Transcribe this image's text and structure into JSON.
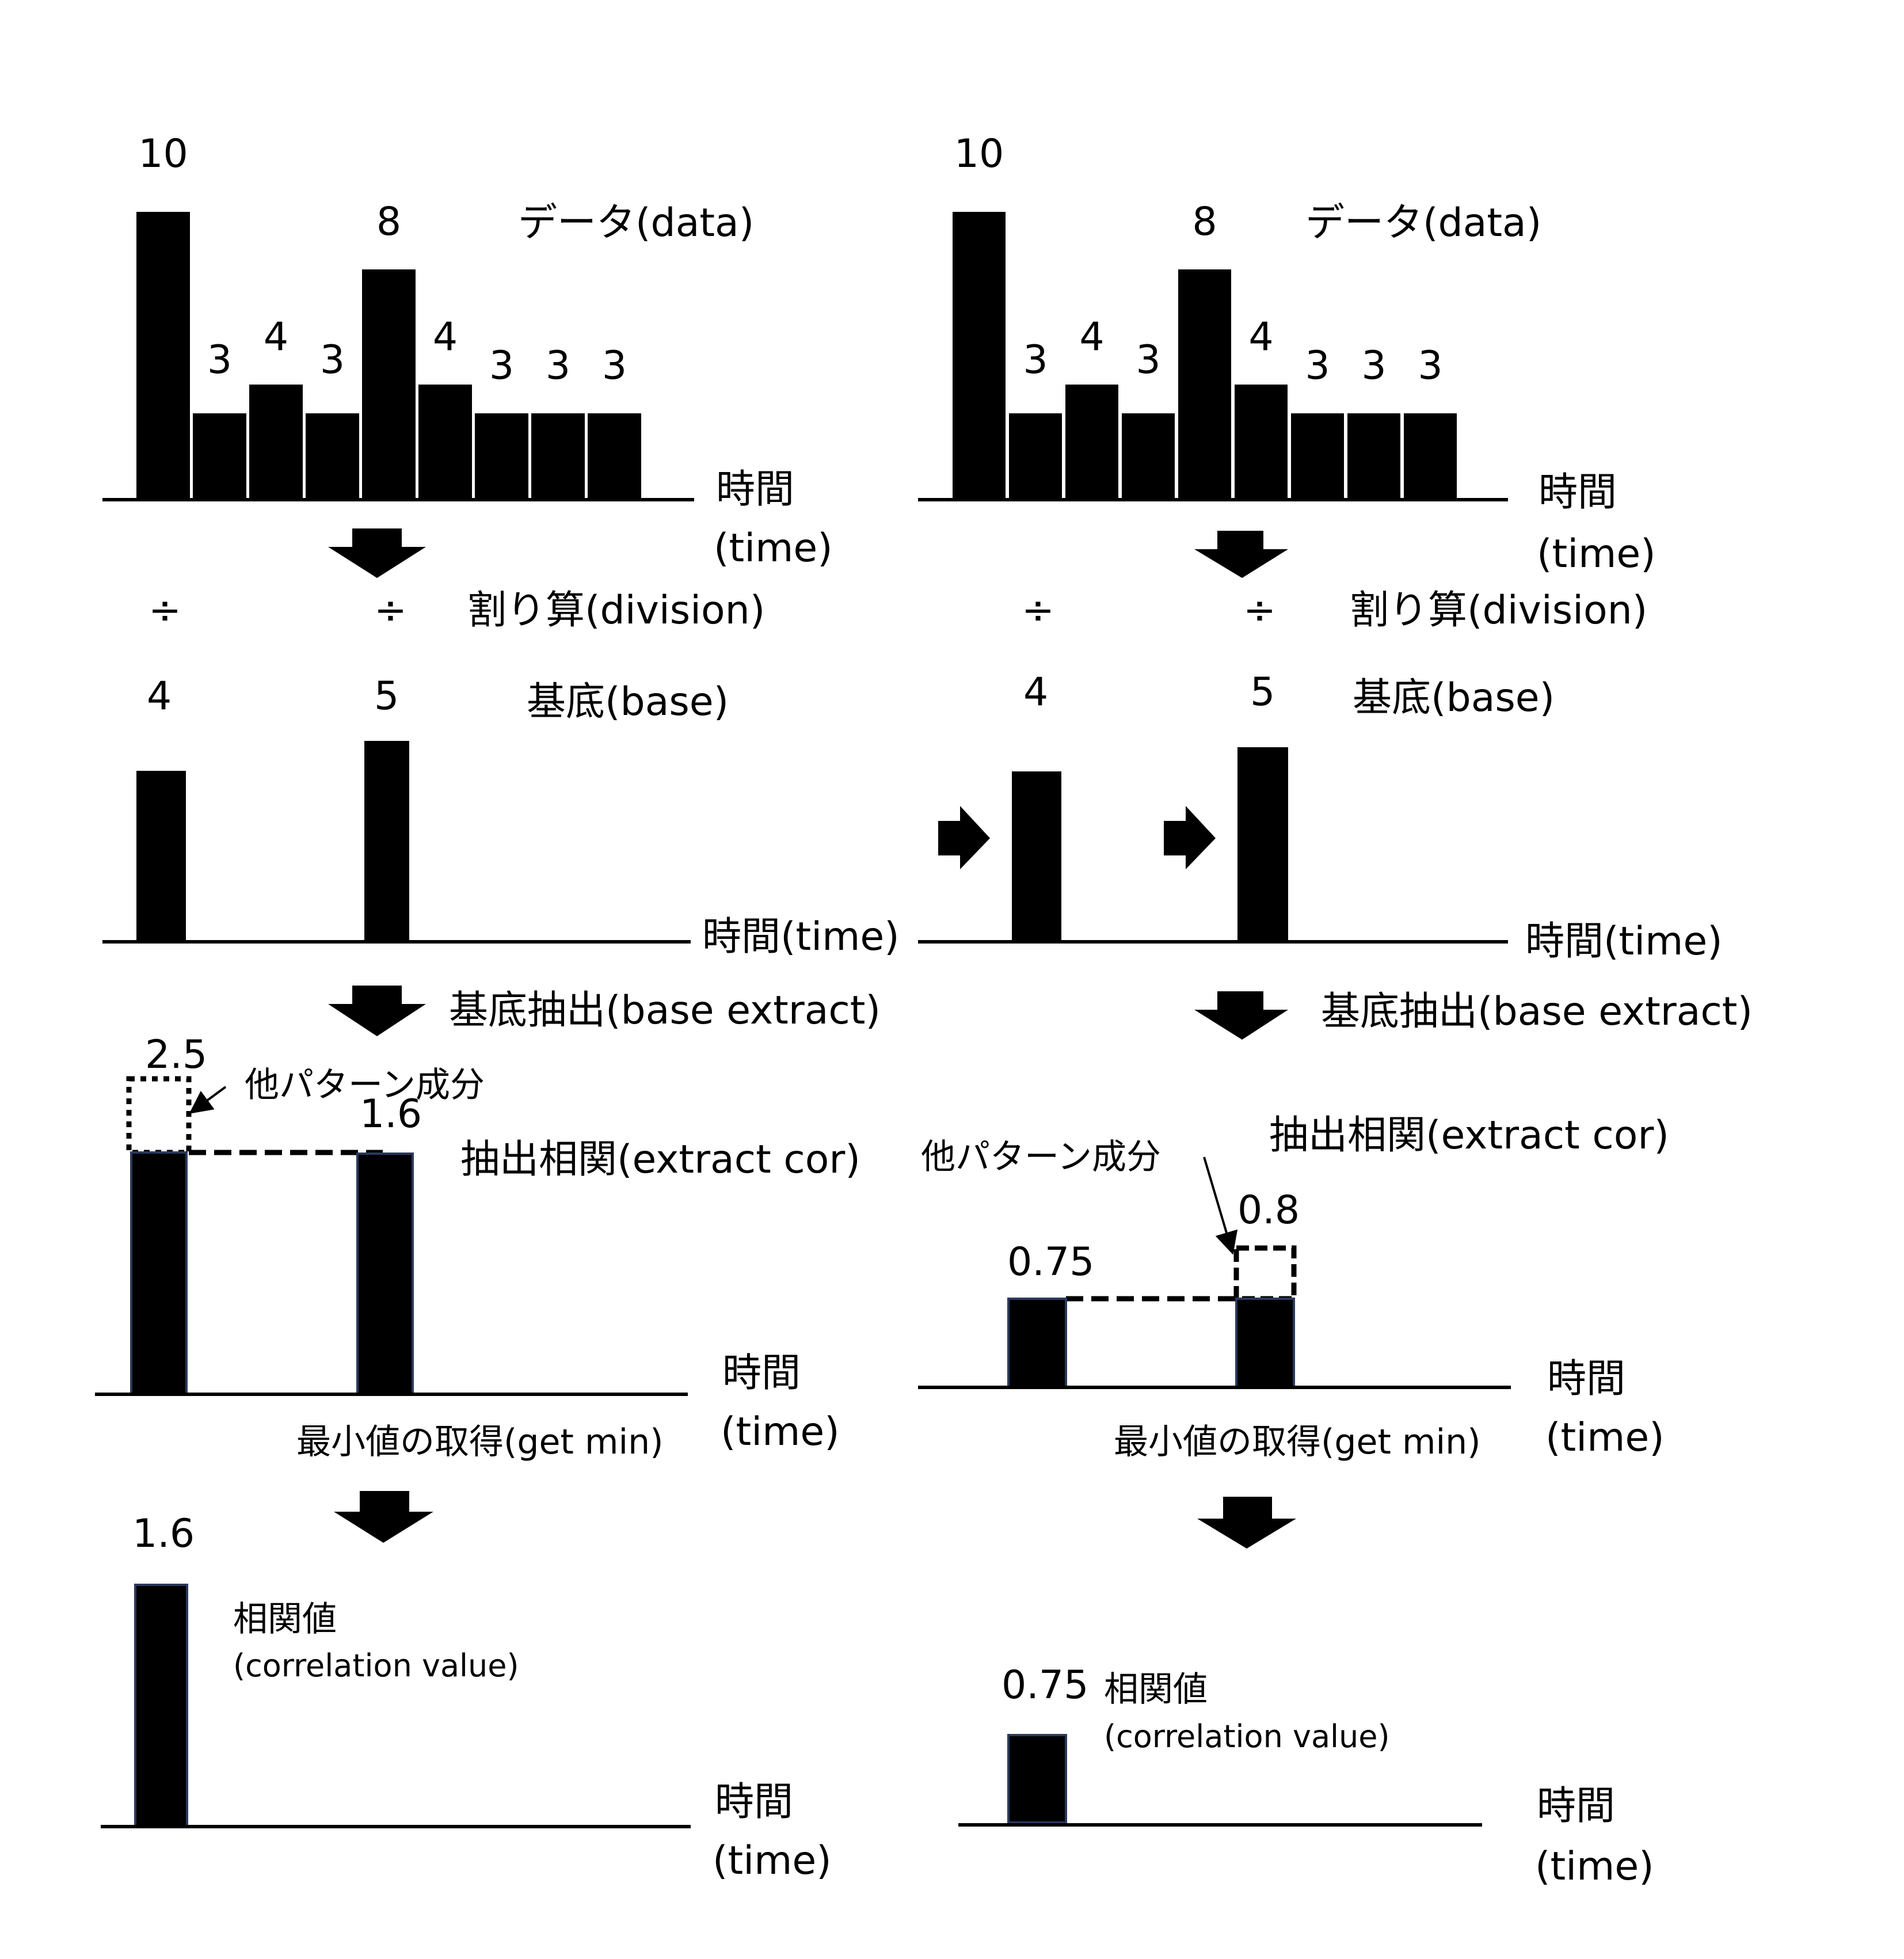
{
  "left": {
    "data_values": [
      10,
      3,
      4,
      3,
      8,
      4,
      3,
      3,
      3
    ],
    "data_label": "データ(data)",
    "time_jp": "時間",
    "time_en": "(time)",
    "division_symbol": "÷",
    "division_label": "割り算(division)",
    "base_values": [
      4,
      5
    ],
    "base_label": "基底(base)",
    "time_inline": "時間(time)",
    "extract_label": "基底抽出(base extract)",
    "other_pattern_value": "2.5",
    "other_pattern_label": "他パターン成分",
    "second_value": "1.6",
    "extract_cor_label": "抽出相関(extract cor)",
    "getmin_label": "最小値の取得(get min)",
    "result_value": "1.6",
    "corr_label_jp": "相関値",
    "corr_label_en": "(correlation value)"
  },
  "right": {
    "data_values": [
      10,
      3,
      4,
      3,
      8,
      4,
      3,
      3,
      3
    ],
    "data_label": "データ(data)",
    "time_jp": "時間",
    "time_en": "(time)",
    "division_symbol": "÷",
    "division_label": "割り算(division)",
    "base_values": [
      4,
      5
    ],
    "base_label": "基底(base)",
    "time_inline": "時間(time)",
    "extract_label": "基底抽出(base extract)",
    "extract_cor_label": "抽出相関(extract cor)",
    "other_pattern_label": "他パターン成分",
    "first_value": "0.75",
    "other_pattern_value": "0.8",
    "getmin_label": "最小値の取得(get min)",
    "result_value": "0.75",
    "corr_label_jp": "相関値",
    "corr_label_en": "(correlation value)"
  }
}
